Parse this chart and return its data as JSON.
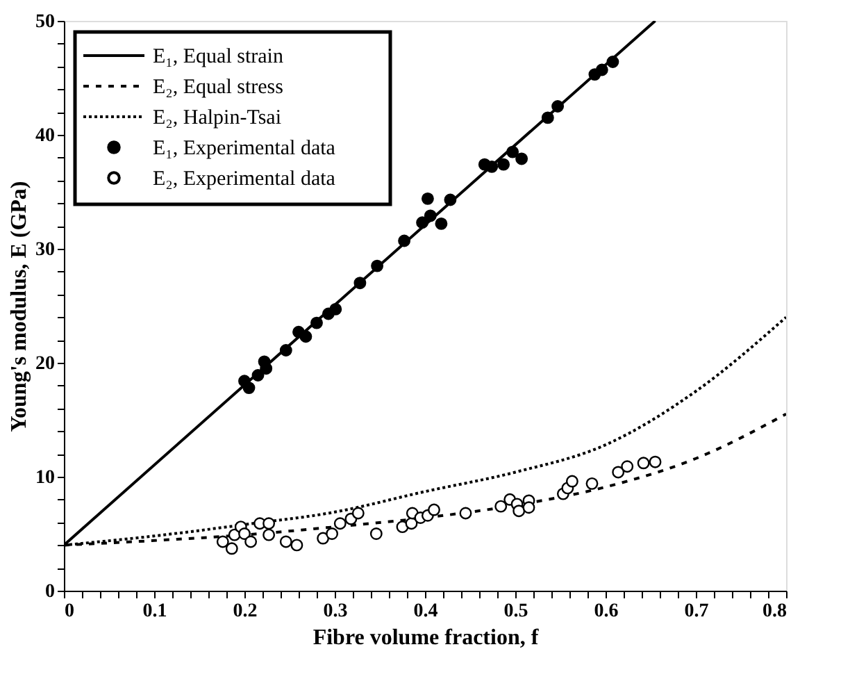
{
  "chart_data": {
    "type": "line",
    "xlabel": "Fibre volume fraction, f",
    "ylabel": "Young's modulus, E (GPa)",
    "xlim": [
      0,
      0.8
    ],
    "ylim": [
      0,
      50
    ],
    "xticks": [
      0,
      {
        "value": 0.02,
        "label": null
      },
      {
        "value": 0.04,
        "label": null
      },
      {
        "value": 0.06,
        "label": null
      },
      {
        "value": 0.08,
        "label": null
      },
      0.1,
      {
        "value": 0.12,
        "label": null
      },
      {
        "value": 0.14,
        "label": null
      },
      {
        "value": 0.16,
        "label": null
      },
      {
        "value": 0.18,
        "label": null
      },
      0.2,
      {
        "value": 0.22,
        "label": null
      },
      {
        "value": 0.24,
        "label": null
      },
      {
        "value": 0.26,
        "label": null
      },
      {
        "value": 0.28,
        "label": null
      },
      0.3,
      {
        "value": 0.32,
        "label": null
      },
      {
        "value": 0.34,
        "label": null
      },
      {
        "value": 0.36,
        "label": null
      },
      {
        "value": 0.38,
        "label": null
      },
      0.4,
      {
        "value": 0.42,
        "label": null
      },
      {
        "value": 0.44,
        "label": null
      },
      {
        "value": 0.46,
        "label": null
      },
      {
        "value": 0.48,
        "label": null
      },
      0.5,
      {
        "value": 0.52,
        "label": null
      },
      {
        "value": 0.54,
        "label": null
      },
      {
        "value": 0.56,
        "label": null
      },
      {
        "value": 0.58,
        "label": null
      },
      0.6,
      {
        "value": 0.62,
        "label": null
      },
      {
        "value": 0.64,
        "label": null
      },
      {
        "value": 0.66,
        "label": null
      },
      {
        "value": 0.68,
        "label": null
      },
      0.7,
      {
        "value": 0.72,
        "label": null
      },
      {
        "value": 0.74,
        "label": null
      },
      {
        "value": 0.76,
        "label": null
      },
      {
        "value": 0.78,
        "label": null
      },
      0.8
    ],
    "yticks": [
      0,
      {
        "value": 2,
        "label": null
      },
      {
        "value": 4,
        "label": null
      },
      {
        "value": 6,
        "label": null
      },
      {
        "value": 8,
        "label": null
      },
      10,
      {
        "value": 12,
        "label": null
      },
      {
        "value": 14,
        "label": null
      },
      {
        "value": 16,
        "label": null
      },
      {
        "value": 18,
        "label": null
      },
      20,
      {
        "value": 22,
        "label": null
      },
      {
        "value": 24,
        "label": null
      },
      {
        "value": 26,
        "label": null
      },
      {
        "value": 28,
        "label": null
      },
      30,
      {
        "value": 32,
        "label": null
      },
      {
        "value": 34,
        "label": null
      },
      {
        "value": 36,
        "label": null
      },
      {
        "value": 38,
        "label": null
      },
      40,
      {
        "value": 42,
        "label": null
      },
      {
        "value": 44,
        "label": null
      },
      {
        "value": 46,
        "label": null
      },
      {
        "value": 48,
        "label": null
      },
      50
    ],
    "grid": false,
    "legend": "top left",
    "series": [
      {
        "name": "E₁, Equal strain",
        "type": "line",
        "line_style": "solid",
        "marker": "none",
        "color": "#000000",
        "x": [
          0,
          0.655
        ],
        "values": [
          4,
          50
        ]
      },
      {
        "name": "E₂, Equal stress",
        "type": "line",
        "line_style": "dashed",
        "marker": "none",
        "color": "#000000",
        "x": [
          0,
          0.1,
          0.2,
          0.3,
          0.4,
          0.5,
          0.6,
          0.7,
          0.8
        ],
        "values": [
          4,
          4.4,
          4.9,
          5.6,
          6.4,
          7.5,
          9.1,
          11.6,
          15.5
        ]
      },
      {
        "name": "E₂, Halpin-Tsai",
        "type": "line",
        "line_style": "dotted",
        "marker": "none",
        "color": "#000000",
        "x": [
          0,
          0.1,
          0.2,
          0.3,
          0.4,
          0.5,
          0.6,
          0.7,
          0.8
        ],
        "values": [
          4,
          4.8,
          5.8,
          6.9,
          8.7,
          10.4,
          12.8,
          17.5,
          24
        ]
      },
      {
        "name": "E₁, Experimental data",
        "type": "scatter",
        "marker": "circle",
        "color": "#000000",
        "x": [
          0.2,
          0.205,
          0.215,
          0.222,
          0.224,
          0.246,
          0.26,
          0.268,
          0.28,
          0.293,
          0.301,
          0.328,
          0.347,
          0.377,
          0.397,
          0.403,
          0.406,
          0.418,
          0.428,
          0.466,
          0.474,
          0.487,
          0.497,
          0.507,
          0.536,
          0.547,
          0.588,
          0.596,
          0.608
        ],
        "values": [
          18.4,
          17.8,
          18.9,
          20.1,
          19.5,
          21.1,
          22.7,
          22.3,
          23.5,
          24.3,
          24.7,
          27,
          28.5,
          30.7,
          32.3,
          34.4,
          32.9,
          32.2,
          34.3,
          37.4,
          37.2,
          37.4,
          38.5,
          37.9,
          41.5,
          42.5,
          45.3,
          45.7,
          46.4
        ]
      },
      {
        "name": "E₂, Experimental data",
        "type": "scatter",
        "marker": "circle",
        "color": "#ffffff",
        "x": [
          0.176,
          0.186,
          0.189,
          0.196,
          0.2,
          0.207,
          0.217,
          0.227,
          0.227,
          0.246,
          0.258,
          0.287,
          0.297,
          0.306,
          0.318,
          0.326,
          0.346,
          0.375,
          0.385,
          0.386,
          0.395,
          0.403,
          0.41,
          0.445,
          0.484,
          0.494,
          0.502,
          0.504,
          0.515,
          0.515,
          0.553,
          0.558,
          0.563,
          0.585,
          0.614,
          0.624,
          0.642,
          0.655
        ],
        "values": [
          4.3,
          3.7,
          4.9,
          5.6,
          5,
          4.3,
          5.9,
          5.9,
          4.9,
          4.3,
          4,
          4.6,
          5,
          5.9,
          6.3,
          6.8,
          5,
          5.6,
          5.9,
          6.8,
          6.4,
          6.6,
          7.1,
          6.8,
          7.4,
          8,
          7.6,
          7,
          7.9,
          7.3,
          8.5,
          9,
          9.6,
          9.4,
          10.4,
          10.9,
          11.2,
          11.3
        ]
      }
    ]
  }
}
